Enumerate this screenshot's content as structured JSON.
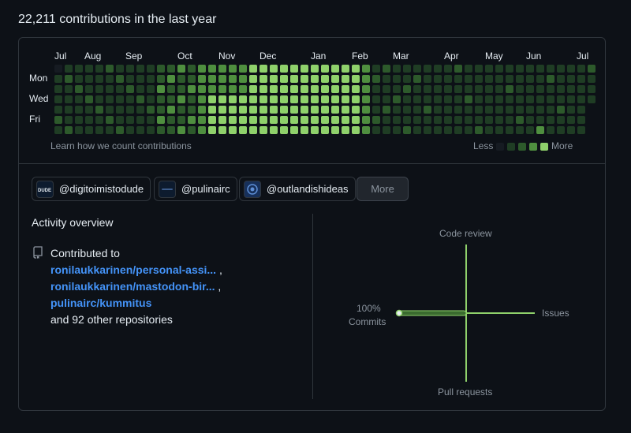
{
  "header": {
    "title": "22,211 contributions in the last year"
  },
  "calendar": {
    "months": [
      "Jul",
      "Aug",
      "Sep",
      "Oct",
      "Nov",
      "Dec",
      "Jan",
      "Feb",
      "Mar",
      "Apr",
      "May",
      "Jun",
      "Jul"
    ],
    "day_labels": [
      "Mon",
      "Wed",
      "Fri"
    ],
    "learn_link": "Learn how we count contributions",
    "legend_less": "Less",
    "legend_more": "More",
    "colors": [
      "#161b22",
      "#0e4429",
      "#006d32",
      "#26a641",
      "#39d353"
    ],
    "cell_colors": [
      "#1c2a1e",
      "#1f3d24",
      "#2d5a2b",
      "#4f8f3f",
      "#8fd16b"
    ]
  },
  "orgs": [
    {
      "handle": "@digitoimistodude",
      "icon": "dude-logo-icon"
    },
    {
      "handle": "@pulinairc",
      "icon": "pulinairc-logo-icon"
    },
    {
      "handle": "@outlandishideas",
      "icon": "outlandishideas-logo-icon"
    }
  ],
  "more_button": "More",
  "activity": {
    "title": "Activity overview",
    "contributed_to": "Contributed to",
    "repos": [
      "ronilaukkarinen/personal-assi...",
      "ronilaukkarinen/mastodon-bir...",
      "pulinairc/kummitus"
    ],
    "other": "and 92 other repositories"
  },
  "overview_chart": {
    "axes": {
      "top": "Code review",
      "right": "Issues",
      "bottom": "Pull requests",
      "left_pct": "100%",
      "left": "Commits"
    },
    "commits_pct": 100,
    "accent": "#8fd16b"
  }
}
